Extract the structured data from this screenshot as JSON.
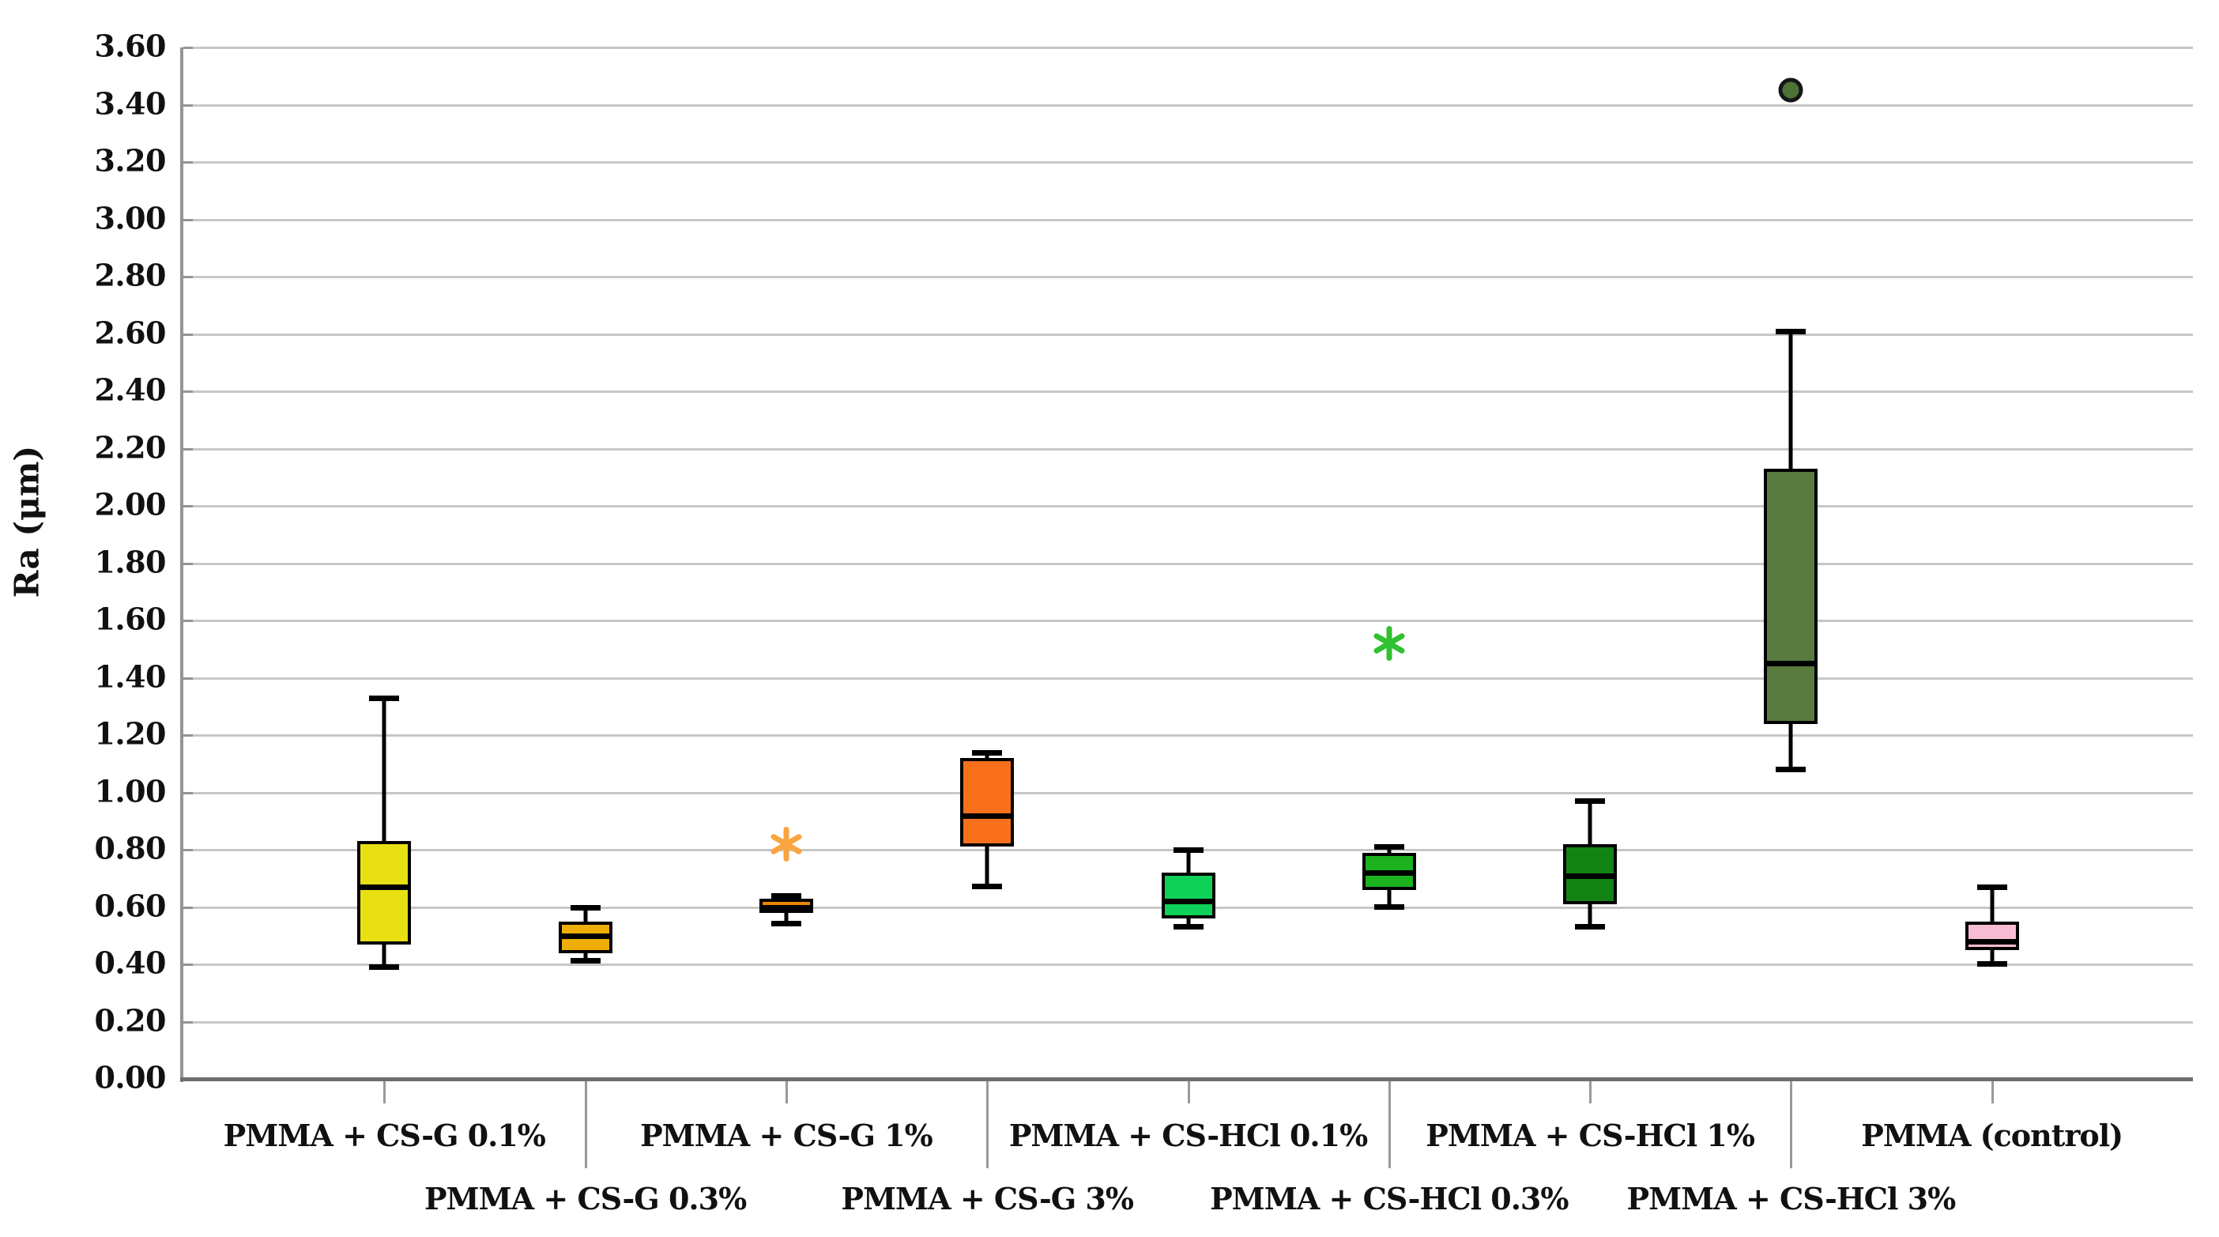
{
  "chart_data": {
    "type": "boxplot",
    "title": "",
    "xlabel": "",
    "ylabel": "Ra (μm)",
    "ylim": [
      0.0,
      3.6
    ],
    "ytick_step": 0.2,
    "ytick_labels": [
      "0.00",
      "0.20",
      "0.40",
      "0.60",
      "0.80",
      "1.00",
      "1.20",
      "1.40",
      "1.60",
      "1.80",
      "2.00",
      "2.20",
      "2.40",
      "2.60",
      "2.80",
      "3.00",
      "3.20",
      "3.40",
      "3.60"
    ],
    "grid": true,
    "legend_position": "none",
    "category_label_layout": "staggered-two-rows",
    "categories": [
      "PMMA + CS-G 0.1%",
      "PMMA + CS-G 0.3%",
      "PMMA + CS-G 1%",
      "PMMA + CS-G 3%",
      "PMMA + CS-HCl 0.1%",
      "PMMA + CS-HCl 0.3%",
      "PMMA + CS-HCl 1%",
      "PMMA + CS-HCl 3%",
      "PMMA (control)"
    ],
    "series": [
      {
        "category": "PMMA + CS-G 0.1%",
        "color": "#e8e013",
        "min": 0.39,
        "q1": 0.47,
        "median": 0.67,
        "q3": 0.83,
        "max": 1.33,
        "outliers": []
      },
      {
        "category": "PMMA + CS-G 0.3%",
        "color": "#efad08",
        "min": 0.41,
        "q1": 0.44,
        "median": 0.5,
        "q3": 0.55,
        "max": 0.6,
        "outliers": []
      },
      {
        "category": "PMMA + CS-G 1%",
        "color": "#ec8407",
        "min": 0.54,
        "q1": 0.58,
        "median": 0.6,
        "q3": 0.63,
        "max": 0.64,
        "outliers": [
          {
            "value": 0.82,
            "marker": "star",
            "color": "#f9a440"
          }
        ]
      },
      {
        "category": "PMMA + CS-G 3%",
        "color": "#f8701c",
        "min": 0.67,
        "q1": 0.81,
        "median": 0.92,
        "q3": 1.12,
        "max": 1.14,
        "outliers": []
      },
      {
        "category": "PMMA + CS-HCl 0.1%",
        "color": "#0fd159",
        "min": 0.53,
        "q1": 0.56,
        "median": 0.62,
        "q3": 0.72,
        "max": 0.8,
        "outliers": []
      },
      {
        "category": "PMMA + CS-HCl 0.3%",
        "color": "#1bb21e",
        "min": 0.6,
        "q1": 0.66,
        "median": 0.72,
        "q3": 0.79,
        "max": 0.81,
        "outliers": [
          {
            "value": 1.52,
            "marker": "star",
            "color": "#2fc12f"
          }
        ]
      },
      {
        "category": "PMMA + CS-HCl 1%",
        "color": "#128413",
        "min": 0.53,
        "q1": 0.61,
        "median": 0.71,
        "q3": 0.82,
        "max": 0.97,
        "outliers": []
      },
      {
        "category": "PMMA + CS-HCl 3%",
        "color": "#597b40",
        "min": 1.08,
        "q1": 1.24,
        "median": 1.45,
        "q3": 2.13,
        "max": 2.61,
        "outliers": [
          {
            "value": 3.45,
            "marker": "circle",
            "color": "#4d7337"
          }
        ]
      },
      {
        "category": "PMMA (control)",
        "color": "#f8bcd2",
        "min": 0.4,
        "q1": 0.45,
        "median": 0.48,
        "q3": 0.55,
        "max": 0.67,
        "outliers": []
      }
    ]
  }
}
